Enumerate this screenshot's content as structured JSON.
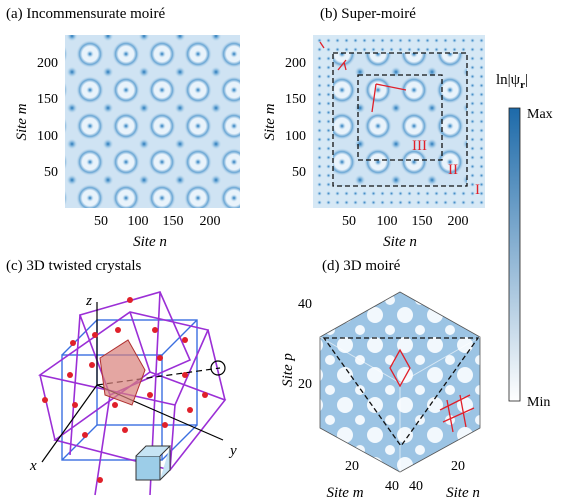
{
  "panels": [
    {
      "title": "(a) Incommensurate moiré",
      "y_label": "Site m",
      "x_label": "Site n",
      "y_ticks": [
        "200",
        "150",
        "100",
        "50"
      ],
      "x_ticks": [
        "50",
        "100",
        "150",
        "200"
      ]
    },
    {
      "title": "(b) Super-moiré",
      "y_label": "Site m",
      "x_label": "Site n",
      "y_ticks": [
        "200",
        "150",
        "100",
        "50"
      ],
      "x_ticks": [
        "50",
        "100",
        "150",
        "200"
      ],
      "regions": [
        "I",
        "II",
        "III"
      ]
    },
    {
      "title": "(c) 3D twisted crystals",
      "axes": [
        "z",
        "y",
        "x"
      ]
    },
    {
      "title": "(d) 3D moiré",
      "p_label": "Site p",
      "p_ticks": [
        "40",
        "20"
      ],
      "m_label": "Site m",
      "m_ticks": [
        "20",
        "40"
      ],
      "n_label": "Site n",
      "n_ticks": [
        "40",
        "20"
      ]
    }
  ],
  "colorbar": {
    "label": "ln|ψ",
    "label_sub": "r",
    "label_end": "|",
    "max": "Max",
    "min": "Min"
  }
}
